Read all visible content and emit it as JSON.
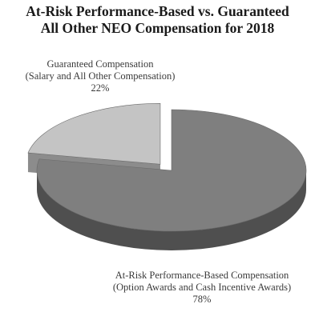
{
  "chart_data": {
    "type": "pie",
    "title_lines": [
      "At-Risk Performance-Based vs. Guaranteed",
      "All Other NEO Compensation for 2018"
    ],
    "slices": [
      {
        "label_lines": [
          "Guaranteed Compensation",
          "(Salary and All Other Compensation)"
        ],
        "value": 22,
        "value_label": "22%",
        "color": "#c4c4c4",
        "side_color": "#9a9a9a",
        "exploded": true
      },
      {
        "label_lines": [
          "At-Risk Performance-Based Compensation",
          "(Option Awards and Cash Incentive Awards)"
        ],
        "value": 78,
        "value_label": "78%",
        "color": "#7f7f7f",
        "side_color": "#4f4f4f",
        "exploded": false
      }
    ],
    "style": "3d-tilted",
    "legend": "none"
  }
}
